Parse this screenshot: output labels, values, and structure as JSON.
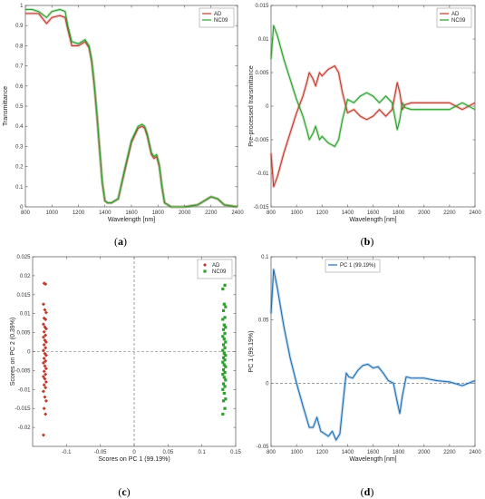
{
  "chart_data": [
    {
      "type": "line",
      "caption": "a",
      "xlabel": "Wavelength [nm]",
      "ylabel": "Transmittance",
      "xlim": [
        800,
        2400
      ],
      "ylim": [
        0,
        1
      ],
      "xticks": [
        800,
        1000,
        1200,
        1400,
        1600,
        1800,
        2000,
        2200,
        2400
      ],
      "yticks": [
        0,
        0.1,
        0.2,
        0.3,
        0.4,
        0.5,
        0.6,
        0.7,
        0.8,
        0.9,
        1
      ],
      "ytick_labels": [
        "0",
        "0.1",
        "0.2",
        "0.3",
        "0.4",
        "0.5",
        "0.6",
        "0.7",
        "0.8",
        "0.9",
        "1"
      ],
      "legend_position": "top-right",
      "series": [
        {
          "name": "AD",
          "color": "#c0392b",
          "x": [
            800,
            850,
            900,
            960,
            1000,
            1060,
            1100,
            1120,
            1150,
            1200,
            1250,
            1280,
            1300,
            1320,
            1340,
            1360,
            1380,
            1400,
            1420,
            1450,
            1500,
            1550,
            1600,
            1650,
            1680,
            1700,
            1720,
            1750,
            1770,
            1790,
            1810,
            1830,
            1850,
            1900,
            2000,
            2100,
            2150,
            2200,
            2250,
            2300,
            2400
          ],
          "y": [
            0.96,
            0.96,
            0.96,
            0.91,
            0.94,
            0.95,
            0.94,
            0.88,
            0.8,
            0.8,
            0.82,
            0.79,
            0.72,
            0.6,
            0.45,
            0.28,
            0.12,
            0.03,
            0.02,
            0.02,
            0.04,
            0.18,
            0.32,
            0.39,
            0.4,
            0.39,
            0.35,
            0.26,
            0.24,
            0.25,
            0.2,
            0.1,
            0.02,
            0.0,
            0.0,
            0.01,
            0.03,
            0.05,
            0.04,
            0.01,
            0.0
          ]
        },
        {
          "name": "NC09",
          "color": "#2ca02c",
          "x": [
            800,
            850,
            900,
            960,
            1000,
            1060,
            1100,
            1120,
            1150,
            1200,
            1250,
            1280,
            1300,
            1320,
            1340,
            1360,
            1380,
            1400,
            1420,
            1450,
            1500,
            1550,
            1600,
            1650,
            1680,
            1700,
            1720,
            1750,
            1770,
            1790,
            1810,
            1830,
            1850,
            1900,
            2000,
            2100,
            2150,
            2200,
            2250,
            2300,
            2400
          ],
          "y": [
            0.98,
            0.98,
            0.97,
            0.94,
            0.97,
            0.98,
            0.97,
            0.9,
            0.82,
            0.81,
            0.83,
            0.8,
            0.73,
            0.61,
            0.46,
            0.29,
            0.12,
            0.03,
            0.02,
            0.02,
            0.04,
            0.19,
            0.33,
            0.4,
            0.41,
            0.4,
            0.36,
            0.27,
            0.25,
            0.26,
            0.21,
            0.1,
            0.02,
            0.0,
            0.0,
            0.01,
            0.03,
            0.05,
            0.04,
            0.01,
            0.0
          ]
        }
      ]
    },
    {
      "type": "line",
      "caption": "b",
      "xlabel": "Wavelength [nm]",
      "ylabel": "Pre-processed transmittance",
      "xlim": [
        800,
        2400
      ],
      "ylim": [
        -0.015,
        0.015
      ],
      "xticks": [
        800,
        1000,
        1200,
        1400,
        1600,
        1800,
        2000,
        2200,
        2400
      ],
      "yticks": [
        -0.015,
        -0.01,
        -0.005,
        0,
        0.005,
        0.01,
        0.015
      ],
      "ytick_labels": [
        "-0.015",
        "-0.01",
        "-0.005",
        "0",
        "0.005",
        "0.01",
        "0.015"
      ],
      "legend_position": "top-right",
      "series": [
        {
          "name": "AD",
          "color": "#c0392b",
          "x": [
            800,
            820,
            850,
            900,
            950,
            1000,
            1050,
            1080,
            1100,
            1130,
            1150,
            1180,
            1200,
            1250,
            1300,
            1330,
            1360,
            1400,
            1450,
            1500,
            1550,
            1600,
            1650,
            1700,
            1750,
            1790,
            1810,
            1830,
            1850,
            1900,
            2000,
            2100,
            2200,
            2300,
            2400
          ],
          "y": [
            -0.007,
            -0.012,
            -0.0105,
            -0.007,
            -0.004,
            -0.001,
            0.0015,
            0.0035,
            0.005,
            0.004,
            0.003,
            0.005,
            0.0045,
            0.0055,
            0.006,
            0.005,
            0.002,
            -0.001,
            -0.0005,
            -0.0015,
            -0.002,
            -0.0015,
            -0.0005,
            -0.0015,
            -0.0005,
            0.0035,
            0.002,
            -0.0005,
            0.0002,
            0.0005,
            0.0005,
            0.0005,
            0.0005,
            -0.0005,
            0.0005
          ]
        },
        {
          "name": "NC09",
          "color": "#2ca02c",
          "x": [
            800,
            820,
            850,
            900,
            950,
            1000,
            1050,
            1080,
            1100,
            1130,
            1150,
            1180,
            1200,
            1250,
            1300,
            1330,
            1360,
            1400,
            1450,
            1500,
            1550,
            1600,
            1650,
            1700,
            1750,
            1790,
            1810,
            1830,
            1850,
            1900,
            2000,
            2100,
            2200,
            2300,
            2400
          ],
          "y": [
            0.007,
            0.012,
            0.0105,
            0.007,
            0.004,
            0.001,
            -0.0015,
            -0.0035,
            -0.005,
            -0.004,
            -0.003,
            -0.005,
            -0.0045,
            -0.0055,
            -0.006,
            -0.005,
            -0.002,
            0.001,
            0.0005,
            0.0015,
            0.002,
            0.0015,
            0.0005,
            0.0015,
            0.0005,
            -0.0035,
            -0.002,
            0.0005,
            -0.0002,
            -0.0005,
            -0.0005,
            -0.0005,
            -0.0005,
            0.0005,
            -0.0005
          ]
        }
      ]
    },
    {
      "type": "scatter",
      "caption": "c",
      "xlabel": "Scores on PC 1 (99.19%)",
      "ylabel": "Scores on PC 2 (0.39%)",
      "xlim": [
        -0.15,
        0.15
      ],
      "ylim": [
        -0.025,
        0.025
      ],
      "xticks": [
        -0.1,
        -0.05,
        0,
        0.05,
        0.1,
        0.15
      ],
      "xtick_labels": [
        "-0.1",
        "-0.05",
        "0",
        "0.05",
        "0.1",
        "0.15"
      ],
      "yticks": [
        -0.02,
        -0.015,
        -0.01,
        -0.005,
        0,
        0.005,
        0.01,
        0.015,
        0.02,
        0.025
      ],
      "ytick_labels": [
        "-0.02",
        "-0.015",
        "-0.01",
        "-0.005",
        "0",
        "0.005",
        "0.01",
        "0.015",
        "0.02",
        "0.025"
      ],
      "legend_position": "top-right",
      "reference_lines": {
        "x": 0,
        "y": 0
      },
      "series": [
        {
          "name": "AD",
          "color": "#c0392b",
          "marker": "diamond",
          "x": [
            -0.133,
            -0.131,
            -0.134,
            -0.132,
            -0.13,
            -0.133,
            -0.131,
            -0.134,
            -0.132,
            -0.13,
            -0.133,
            -0.131,
            -0.134,
            -0.132,
            -0.13,
            -0.133,
            -0.131,
            -0.134,
            -0.132,
            -0.13,
            -0.133,
            -0.131,
            -0.134,
            -0.132,
            -0.13,
            -0.133,
            -0.131,
            -0.134,
            -0.132,
            -0.13,
            -0.133,
            -0.131,
            -0.134,
            -0.132,
            -0.13,
            -0.133,
            -0.131,
            -0.134
          ],
          "y": [
            0.018,
            0.0178,
            0.0125,
            0.011,
            0.0103,
            0.0088,
            0.0085,
            0.0072,
            0.0065,
            0.006,
            0.0052,
            0.0043,
            0.0038,
            0.003,
            0.0025,
            0.0018,
            0.001,
            0.0003,
            -0.0005,
            -0.001,
            -0.0018,
            -0.0025,
            -0.003,
            -0.0038,
            -0.0045,
            -0.0052,
            -0.006,
            -0.0066,
            -0.0072,
            -0.008,
            -0.0088,
            -0.0095,
            -0.0105,
            -0.012,
            -0.013,
            -0.015,
            -0.0165,
            -0.022
          ]
        },
        {
          "name": "NC09",
          "color": "#2ca02c",
          "marker": "square",
          "x": [
            0.132,
            0.134,
            0.131,
            0.133,
            0.135,
            0.132,
            0.134,
            0.131,
            0.133,
            0.135,
            0.132,
            0.134,
            0.131,
            0.133,
            0.135,
            0.132,
            0.134,
            0.131,
            0.133,
            0.135,
            0.132,
            0.134,
            0.131,
            0.133,
            0.135,
            0.132,
            0.134,
            0.131,
            0.133,
            0.135,
            0.132,
            0.134,
            0.131,
            0.133,
            0.135,
            0.132,
            0.134,
            0.131
          ],
          "y": [
            0.022,
            0.0175,
            0.0165,
            0.0125,
            0.0118,
            0.0108,
            0.009,
            0.0085,
            0.007,
            0.0064,
            0.0058,
            0.0048,
            0.004,
            0.0033,
            0.0025,
            0.0018,
            0.001,
            0.0003,
            -0.0005,
            -0.001,
            -0.0016,
            -0.0022,
            -0.0028,
            -0.0035,
            -0.004,
            -0.0048,
            -0.0055,
            -0.006,
            -0.0068,
            -0.0075,
            -0.0085,
            -0.0092,
            -0.01,
            -0.011,
            -0.0125,
            -0.013,
            -0.015,
            -0.0165
          ]
        }
      ]
    },
    {
      "type": "line",
      "caption": "d",
      "xlabel": "Wavelength [nm]",
      "ylabel": "PC 1 (99.19%)",
      "xlim": [
        800,
        2400
      ],
      "ylim": [
        -0.05,
        0.1
      ],
      "xticks": [
        800,
        1000,
        1200,
        1400,
        1600,
        1800,
        2000,
        2200,
        2400
      ],
      "yticks": [
        -0.05,
        0,
        0.05,
        0.1
      ],
      "ytick_labels": [
        "-0.05",
        "0",
        "0.05",
        "0.1"
      ],
      "legend_position": "top-left",
      "reference_lines": {
        "y": 0
      },
      "series": [
        {
          "name": "PC 1 (99.19%)",
          "color": "#1f6fb5",
          "x": [
            800,
            820,
            850,
            900,
            950,
            1000,
            1050,
            1100,
            1130,
            1160,
            1190,
            1220,
            1250,
            1280,
            1310,
            1340,
            1370,
            1390,
            1410,
            1440,
            1480,
            1520,
            1560,
            1600,
            1640,
            1680,
            1720,
            1760,
            1790,
            1810,
            1830,
            1860,
            1900,
            2000,
            2100,
            2200,
            2300,
            2400
          ],
          "y": [
            0.055,
            0.09,
            0.075,
            0.045,
            0.02,
            0.0,
            -0.018,
            -0.035,
            -0.035,
            -0.027,
            -0.038,
            -0.04,
            -0.042,
            -0.038,
            -0.045,
            -0.04,
            -0.01,
            0.008,
            0.005,
            0.004,
            0.01,
            0.014,
            0.015,
            0.012,
            0.013,
            0.008,
            0.002,
            0.0,
            -0.015,
            -0.024,
            -0.01,
            0.005,
            0.004,
            0.004,
            0.002,
            0.001,
            -0.002,
            0.002
          ]
        }
      ]
    }
  ]
}
